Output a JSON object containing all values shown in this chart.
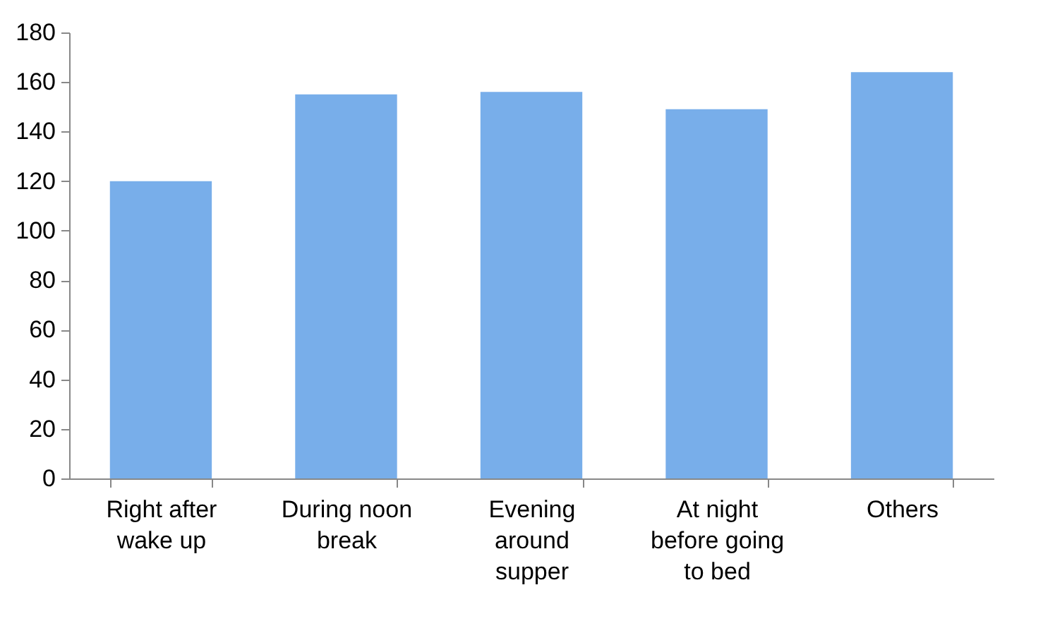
{
  "chart_data": {
    "type": "bar",
    "categories": [
      "Right after wake up",
      "During noon break",
      "Evening around supper",
      "At night before going to bed",
      "Others"
    ],
    "values": [
      120,
      155,
      156,
      149,
      164
    ],
    "color": "#78aeea",
    "ylim": [
      0,
      180
    ],
    "yticks": [
      0,
      20,
      40,
      60,
      80,
      100,
      120,
      140,
      160,
      180
    ],
    "grid": false
  }
}
